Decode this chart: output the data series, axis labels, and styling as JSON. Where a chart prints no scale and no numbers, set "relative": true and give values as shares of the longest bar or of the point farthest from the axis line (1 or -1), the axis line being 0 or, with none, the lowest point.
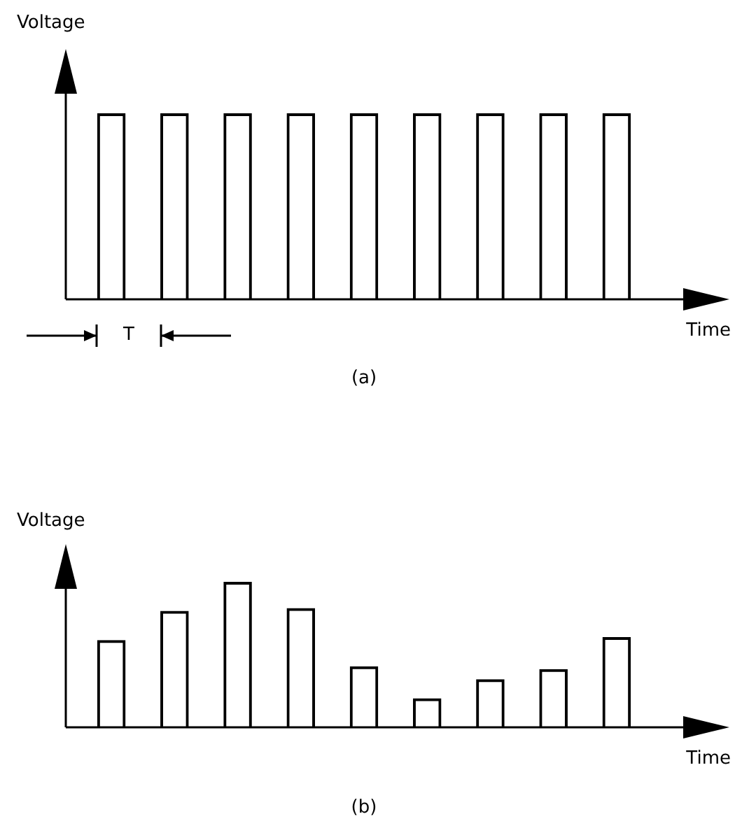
{
  "chart_data": [
    {
      "type": "bar",
      "relative": true,
      "ylabel": "Voltage",
      "xlabel": "Time",
      "color": "#000000",
      "categories": [
        null,
        null,
        null,
        null,
        null,
        null,
        null,
        null,
        null
      ],
      "values": [
        1,
        1,
        1,
        1,
        1,
        1,
        1,
        1,
        1
      ],
      "annotations": [
        "T",
        "(a)"
      ]
    },
    {
      "type": "bar",
      "relative": true,
      "ylabel": "Voltage",
      "xlabel": "Time",
      "color": "#000000",
      "categories": [
        null,
        null,
        null,
        null,
        null,
        null,
        null,
        null,
        null
      ],
      "values": [
        0.6,
        0.8,
        1,
        0.82,
        0.42,
        0.2,
        0.33,
        0.4,
        0.62
      ],
      "annotations": [
        "(b)"
      ]
    }
  ]
}
